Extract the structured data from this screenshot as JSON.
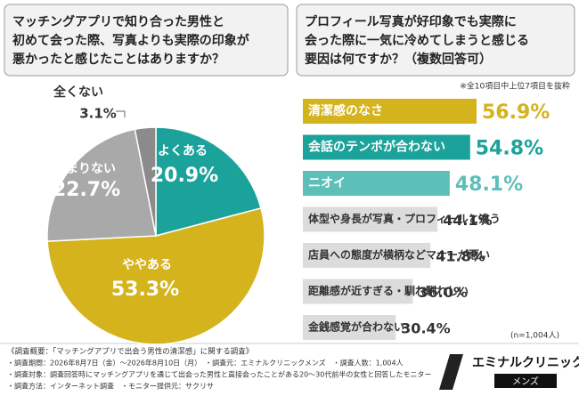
{
  "chart_data": [
    {
      "type": "pie",
      "title": [
        "マッチングアプリで知り合った男性と",
        "初めて会った際、写真よりも実際の印象が",
        "悪かったと感じたことはありますか？"
      ],
      "categories": [
        "よくある",
        "ややある",
        "あまりない",
        "全くない"
      ],
      "values": [
        20.9,
        53.3,
        22.7,
        3.1
      ],
      "value_labels": [
        "20.9%",
        "53.3%",
        "22.7%",
        "3.1%"
      ],
      "colors": [
        "#1ba39b",
        "#d4b31c",
        "#a9a9a9",
        "#8b8b8b"
      ]
    },
    {
      "type": "hbar",
      "title": [
        "プロフィール写真が好印象でも実際に",
        "会った際に一気に冷めてしまうと感じる",
        "要因は何ですか？（複数回答可）"
      ],
      "note": "※全10項目中上位7項目を抜粋",
      "sample": "(n=1,004人)",
      "categories": [
        "清潔感のなさ",
        "会話のテンポが合わない",
        "ニオイ",
        "体型や身長が写真・プロフィールと違う",
        "店員への態度が横柄などマナーが悪い",
        "距離感が近すぎる・馴れ馴れしい",
        "金銭感覚が合わない"
      ],
      "values": [
        56.9,
        54.8,
        48.1,
        44.1,
        41.8,
        36.0,
        30.4
      ],
      "value_labels": [
        "56.9%",
        "54.8%",
        "48.1%",
        "44.1%",
        "41.8%",
        "36.0%",
        "30.4%"
      ],
      "colors": [
        "#d4b31c",
        "#1ba39b",
        "#5cc0b9",
        "#dcdcdc",
        "#dcdcdc",
        "#dcdcdc",
        "#dcdcdc"
      ]
    }
  ],
  "survey": [
    "《調査概要：「マッチングアプリで出会う男性の清潔感」に関する調査》",
    "・調査期間：2026年8月7日（金）～2026年8月10日（月）　・調査元：エミナルクリニックメンズ　・調査人数：1,004人",
    "・調査対象：調査回答時にマッチングアプリを通じて出会った男性と直接会ったことがある20～30代前半の女性と回答したモニター",
    "・調査方法：インターネット調査　・モニター提供元：サクリサ"
  ],
  "logo": {
    "name": "エミナルクリニック",
    "sub": "メンズ"
  }
}
